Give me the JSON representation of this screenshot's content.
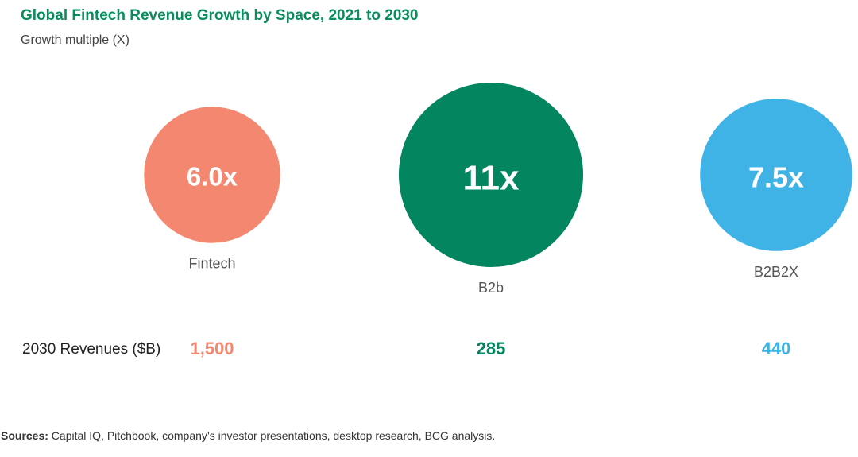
{
  "chart_data": {
    "type": "bubble",
    "title": "Global Fintech Revenue Growth by Space, 2021 to 2030",
    "subtitle": "Growth multiple (X)",
    "row_label": "2030 Revenues ($B)",
    "series": [
      {
        "name": "Fintech",
        "multiple": 6.0,
        "multiple_label": "6.0x",
        "revenue_2030": 1500,
        "revenue_label": "1,500",
        "color": "#f4876f"
      },
      {
        "name": "B2b",
        "multiple": 11,
        "multiple_label": "11x",
        "revenue_2030": 285,
        "revenue_label": "285",
        "color": "#038560"
      },
      {
        "name": "B2B2X",
        "multiple": 7.5,
        "multiple_label": "7.5x",
        "revenue_2030": 440,
        "revenue_label": "440",
        "color": "#40b3e6"
      }
    ]
  },
  "sources": {
    "label": "Sources:",
    "text": " Capital IQ, Pitchbook, company’s investor presentations, desktop research, BCG analysis."
  }
}
